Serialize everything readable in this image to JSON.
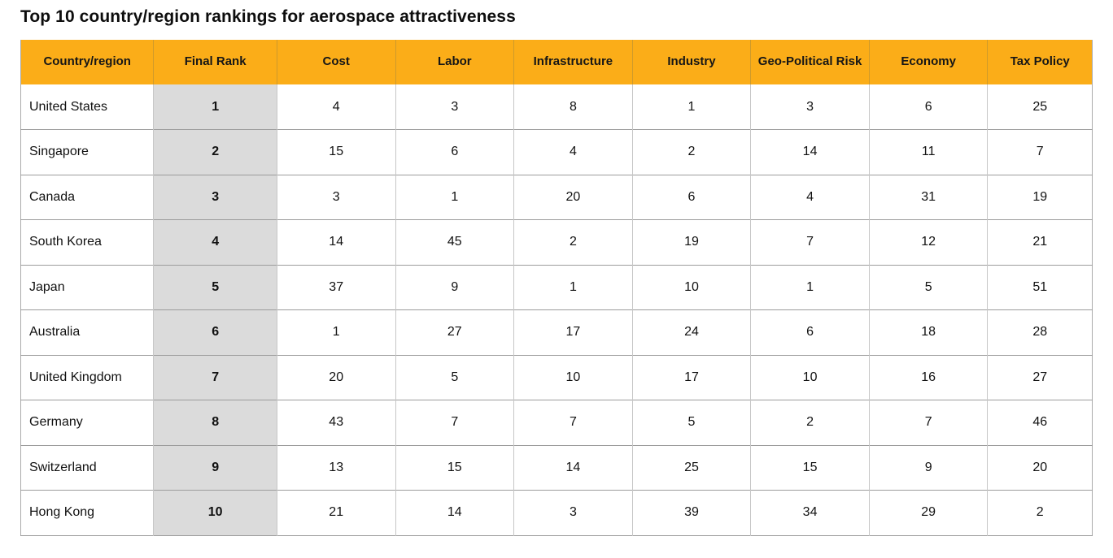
{
  "page": {
    "title": "Top 10 country/region rankings for aerospace attractiveness"
  },
  "table": {
    "columns": [
      "Country/region",
      "Final Rank",
      "Cost",
      "Labor",
      "Infrastructure",
      "Industry",
      "Geo-Political Risk",
      "Economy",
      "Tax Policy"
    ],
    "rows": [
      {
        "country": "United States",
        "final_rank": "1",
        "values": [
          "4",
          "3",
          "8",
          "1",
          "3",
          "6",
          "25"
        ]
      },
      {
        "country": "Singapore",
        "final_rank": "2",
        "values": [
          "15",
          "6",
          "4",
          "2",
          "14",
          "11",
          "7"
        ]
      },
      {
        "country": "Canada",
        "final_rank": "3",
        "values": [
          "3",
          "1",
          "20",
          "6",
          "4",
          "31",
          "19"
        ]
      },
      {
        "country": "South Korea",
        "final_rank": "4",
        "values": [
          "14",
          "45",
          "2",
          "19",
          "7",
          "12",
          "21"
        ]
      },
      {
        "country": "Japan",
        "final_rank": "5",
        "values": [
          "37",
          "9",
          "1",
          "10",
          "1",
          "5",
          "51"
        ]
      },
      {
        "country": "Australia",
        "final_rank": "6",
        "values": [
          "1",
          "27",
          "17",
          "24",
          "6",
          "18",
          "28"
        ]
      },
      {
        "country": "United Kingdom",
        "final_rank": "7",
        "values": [
          "20",
          "5",
          "10",
          "17",
          "10",
          "16",
          "27"
        ]
      },
      {
        "country": "Germany",
        "final_rank": "8",
        "values": [
          "43",
          "7",
          "7",
          "5",
          "2",
          "7",
          "46"
        ]
      },
      {
        "country": "Switzerland",
        "final_rank": "9",
        "values": [
          "13",
          "15",
          "14",
          "25",
          "15",
          "9",
          "20"
        ]
      },
      {
        "country": "Hong Kong",
        "final_rank": "10",
        "values": [
          "21",
          "14",
          "3",
          "39",
          "34",
          "29",
          "2"
        ]
      }
    ]
  },
  "colors": {
    "header_bg": "#FBAD18",
    "header_divider": "#CE9A2B",
    "rank_column_bg": "#DBDBDB",
    "row_border": "#9C9C9C",
    "column_border": "#C6C6C6",
    "text": "#111111",
    "background": "#FFFFFF"
  }
}
